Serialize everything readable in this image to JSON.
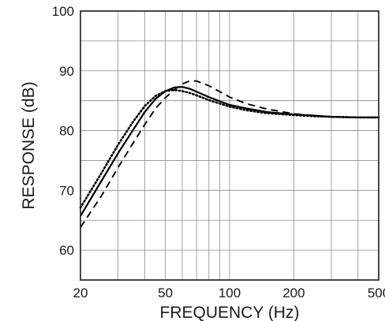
{
  "chart_data": {
    "type": "line",
    "title": "",
    "xlabel": "FREQUENCY (Hz)",
    "ylabel": "RESPONSE (dB)",
    "xscale": "log",
    "xlim": [
      20,
      500
    ],
    "ylim": [
      55,
      100
    ],
    "x_ticks": [
      20,
      50,
      100,
      200,
      500
    ],
    "x_tick_labels": [
      "20",
      "50",
      "100",
      "200",
      "500"
    ],
    "y_ticks": [
      60,
      70,
      80,
      90,
      100
    ],
    "y_tick_labels": [
      "60",
      "70",
      "80",
      "90",
      "100"
    ],
    "x_minor_gridlines": [
      30,
      40,
      60,
      70,
      80,
      90,
      300,
      400
    ],
    "y_minor_gridlines": [
      65,
      75,
      85,
      95
    ],
    "grid": true,
    "legend": "none",
    "series": [
      {
        "style": "solid",
        "color": "#000000",
        "x": [
          20,
          25,
          30,
          35,
          40,
          45,
          50,
          55,
          60,
          65,
          70,
          80,
          100,
          120,
          150,
          200,
          250,
          300,
          400,
          500
        ],
        "y": [
          65.7,
          71.5,
          76.2,
          79.9,
          83.1,
          85.3,
          86.6,
          87.2,
          87.3,
          87.0,
          86.5,
          85.6,
          84.3,
          83.7,
          83.1,
          82.7,
          82.5,
          82.3,
          82.2,
          82.2
        ]
      },
      {
        "style": "dashed",
        "color": "#000000",
        "x": [
          20,
          25,
          30,
          35,
          40,
          45,
          50,
          55,
          60,
          65,
          70,
          80,
          100,
          120,
          150,
          200,
          250,
          300,
          400,
          500
        ],
        "y": [
          63.8,
          69.0,
          73.8,
          77.7,
          81.0,
          83.7,
          85.5,
          86.8,
          87.8,
          88.3,
          88.3,
          87.5,
          85.6,
          84.5,
          83.6,
          82.8,
          82.5,
          82.3,
          82.2,
          82.2
        ]
      },
      {
        "style": "dotted",
        "color": "#000000",
        "x": [
          20,
          25,
          30,
          35,
          40,
          45,
          50,
          55,
          60,
          65,
          70,
          80,
          100,
          120,
          150,
          200,
          250,
          300,
          400,
          500
        ],
        "y": [
          67.1,
          72.8,
          77.6,
          81.3,
          84.1,
          85.8,
          86.6,
          86.8,
          86.6,
          86.3,
          85.9,
          85.1,
          84.0,
          83.4,
          82.9,
          82.6,
          82.4,
          82.3,
          82.2,
          82.2
        ]
      }
    ]
  }
}
